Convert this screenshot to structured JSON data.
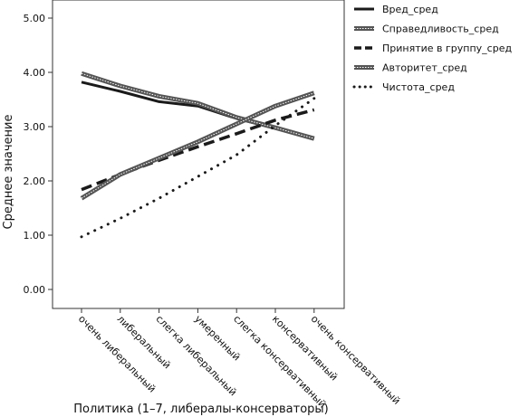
{
  "chart_data": {
    "type": "line",
    "title": "",
    "xlabel": "Политика (1–7, либералы-консерваторы)",
    "ylabel": "Среднее значение",
    "ylim": [
      0,
      5
    ],
    "yticks": [
      "0.00",
      "1.00",
      "2.00",
      "3.00",
      "4.00",
      "5.00"
    ],
    "categories": [
      "очень либеральный",
      "либеральный",
      "слегка либеральный",
      "умеренный",
      "слегка консервативный",
      "консервативный",
      "очень  консервативный"
    ],
    "grid": false,
    "legend_position": "top-right",
    "series": [
      {
        "name": "Вред_сред",
        "style": "solid",
        "color": "#1a1a1a",
        "values": [
          3.82,
          3.65,
          3.46,
          3.38,
          3.15,
          2.97,
          2.78
        ]
      },
      {
        "name": "Справедливость_сред",
        "style": "hatched",
        "color": "#555555",
        "values": [
          3.98,
          3.75,
          3.56,
          3.43,
          3.17,
          2.98,
          2.78
        ]
      },
      {
        "name": "Принятие в группу_сред",
        "style": "dashed",
        "color": "#1a1a1a",
        "values": [
          1.84,
          2.12,
          2.38,
          2.63,
          2.87,
          3.12,
          3.31
        ]
      },
      {
        "name": "Авторитет_сред",
        "style": "hatched",
        "color": "#555555",
        "values": [
          1.68,
          2.12,
          2.42,
          2.72,
          3.05,
          3.38,
          3.62
        ]
      },
      {
        "name": "Чистота_сред",
        "style": "dotted",
        "color": "#1a1a1a",
        "values": [
          0.97,
          1.31,
          1.68,
          2.08,
          2.48,
          3.02,
          3.52
        ]
      }
    ]
  }
}
